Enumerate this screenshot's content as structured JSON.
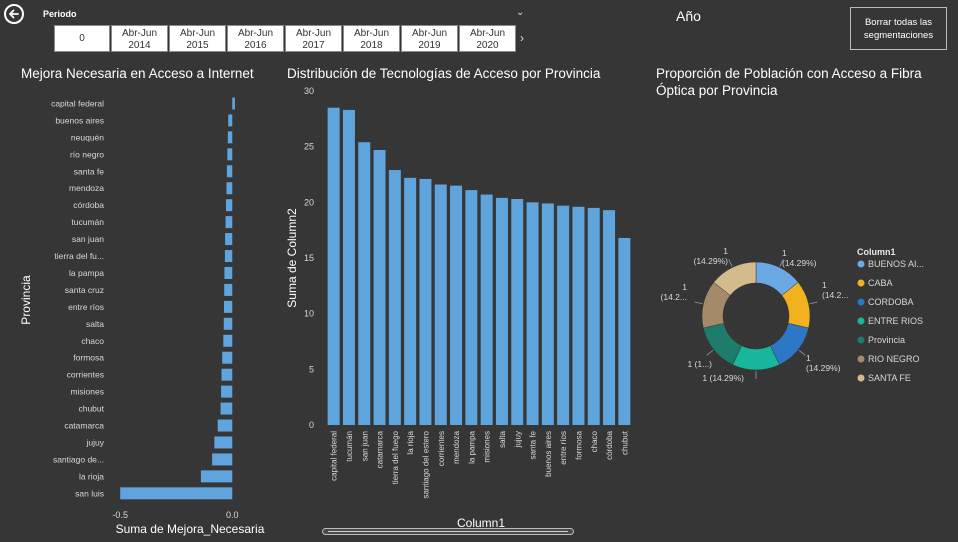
{
  "header": {
    "slicer_title": "Periodo",
    "tiles": [
      {
        "line1": "0",
        "line2": ""
      },
      {
        "line1": "Abr-Jun",
        "line2": "2014"
      },
      {
        "line1": "Abr-Jun",
        "line2": "2015"
      },
      {
        "line1": "Abr-Jun",
        "line2": "2016"
      },
      {
        "line1": "Abr-Jun",
        "line2": "2017"
      },
      {
        "line1": "Abr-Jun",
        "line2": "2018"
      },
      {
        "line1": "Abr-Jun",
        "line2": "2019"
      },
      {
        "line1": "Abr-Jun",
        "line2": "2020"
      }
    ],
    "year_title": "Año",
    "clear_button": "Borrar todas las segmentaciones"
  },
  "chart_data": [
    {
      "type": "bar",
      "orientation": "horizontal",
      "title": "Mejora Necesaria en Acceso a Internet",
      "xlabel": "Suma de Mejora_Necesaria",
      "ylabel": "Provincia",
      "xlim": [
        -0.55,
        0.03
      ],
      "xticks": [
        {
          "v": -0.5,
          "label": "-0.5"
        },
        {
          "v": 0.0,
          "label": "0.0"
        }
      ],
      "color": "#5fa4dc",
      "categories": [
        "capital federal",
        "buenos aires",
        "neuquén",
        "río negro",
        "santa fe",
        "mendoza",
        "córdoba",
        "tucumán",
        "san juan",
        "tierra del fu...",
        "la pampa",
        "santa cruz",
        "entre ríos",
        "salta",
        "chaco",
        "formosa",
        "corrientes",
        "misiones",
        "chubut",
        "catamarca",
        "jujuy",
        "santiago de...",
        "la rioja",
        "san luis"
      ],
      "values": [
        0.012,
        -0.018,
        -0.02,
        -0.022,
        -0.024,
        -0.026,
        -0.028,
        -0.03,
        -0.032,
        -0.033,
        -0.035,
        -0.036,
        -0.037,
        -0.038,
        -0.04,
        -0.045,
        -0.048,
        -0.05,
        -0.052,
        -0.065,
        -0.08,
        -0.09,
        -0.14,
        -0.5
      ]
    },
    {
      "type": "bar",
      "title": "Distribución de Tecnologías de Acceso por Provincia",
      "xlabel": "Column1",
      "ylabel": "Suma de Column2",
      "ylim": [
        0,
        30
      ],
      "yticks": [
        0,
        5,
        10,
        15,
        20,
        25,
        30
      ],
      "color": "#5fa4dc",
      "categories": [
        "capital federal",
        "tucumán",
        "san juan",
        "catamarca",
        "tierra del fuego",
        "la rioja",
        "santiago del estero",
        "corrientes",
        "mendoza",
        "la pampa",
        "misiones",
        "salta",
        "jujuy",
        "santa fe",
        "buenos aires",
        "entre ríos",
        "formosa",
        "chaco",
        "córdoba",
        "chubut"
      ],
      "values": [
        28.5,
        28.3,
        25.4,
        24.7,
        22.9,
        22.2,
        22.1,
        21.6,
        21.5,
        21.1,
        20.7,
        20.4,
        20.3,
        20.0,
        19.9,
        19.7,
        19.6,
        19.5,
        19.3,
        16.8
      ]
    },
    {
      "type": "pie",
      "variant": "donut",
      "title": "Proporción de Población con Acceso a Fibra Óptica por Provincia",
      "legend_title": "Column1",
      "legend_position": "right",
      "slices": [
        {
          "name": "BUENOS AI...",
          "value": 1,
          "color": "#6aa8e6",
          "label": [
            "1",
            "(14.29%)"
          ]
        },
        {
          "name": "CABA",
          "value": 1,
          "color": "#f2b21f",
          "label": [
            "1",
            "(14.2..."
          ]
        },
        {
          "name": "CORDOBA",
          "value": 1,
          "color": "#2c78c5",
          "label": [
            "1",
            "(14.29%)"
          ]
        },
        {
          "name": "ENTRE RIOS",
          "value": 1,
          "color": "#18b69a",
          "label": [
            "1 (14.29%)"
          ]
        },
        {
          "name": "Provincia",
          "value": 1,
          "color": "#1e7c6b",
          "label": [
            "1 (1...)"
          ]
        },
        {
          "name": "RIO NEGRO",
          "value": 1,
          "color": "#a58a6a",
          "label": [
            "1",
            "(14.2..."
          ]
        },
        {
          "name": "SANTA FE",
          "value": 1,
          "color": "#d4bb8e",
          "label": [
            "1",
            "(14.29%)"
          ]
        }
      ]
    }
  ]
}
